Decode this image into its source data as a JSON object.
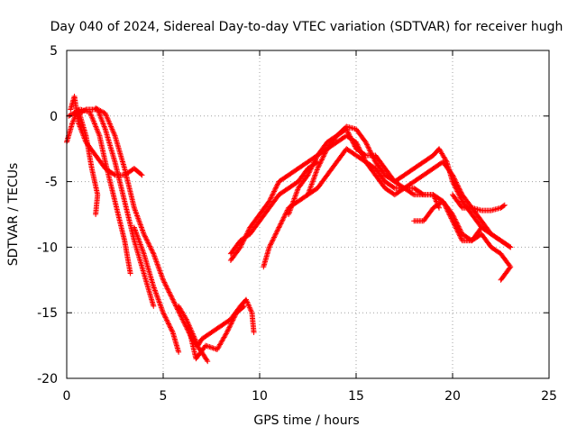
{
  "chart_data": {
    "type": "scatter",
    "title": "Day 040 of 2024, Sidereal Day-to-day VTEC variation (SDTVAR) for receiver hugh",
    "xlabel": "GPS time / hours",
    "ylabel": "SDTVAR / TECUs",
    "xlim": [
      0,
      25
    ],
    "ylim": [
      -20,
      5
    ],
    "xticks": [
      "0",
      "5",
      "10",
      "15",
      "20",
      "25"
    ],
    "yticks": [
      "5",
      "0",
      "-5",
      "-10",
      "-15",
      "-20"
    ],
    "grid": true,
    "marker": "+",
    "series_color": "#ff0000",
    "tracks": [
      {
        "name": "track-1",
        "points": [
          [
            0.0,
            -2.0
          ],
          [
            0.3,
            -0.5
          ],
          [
            0.6,
            0.5
          ],
          [
            1.0,
            -1.5
          ],
          [
            1.3,
            -4.0
          ],
          [
            1.6,
            -6.0
          ],
          [
            1.5,
            -7.5
          ]
        ]
      },
      {
        "name": "track-2",
        "points": [
          [
            0.2,
            0.5
          ],
          [
            0.4,
            1.5
          ],
          [
            0.6,
            -0.5
          ],
          [
            1.0,
            -2.0
          ],
          [
            1.5,
            -3.0
          ],
          [
            2.0,
            -4.0
          ],
          [
            2.5,
            -4.5
          ],
          [
            3.0,
            -4.5
          ],
          [
            3.5,
            -4.0
          ],
          [
            3.9,
            -4.5
          ]
        ]
      },
      {
        "name": "track-3",
        "points": [
          [
            0.1,
            0.0
          ],
          [
            0.7,
            0.5
          ],
          [
            1.2,
            0.3
          ],
          [
            1.7,
            -1.5
          ],
          [
            2.0,
            -3.5
          ],
          [
            2.5,
            -6.5
          ],
          [
            3.0,
            -9.5
          ],
          [
            3.3,
            -12.0
          ]
        ]
      },
      {
        "name": "track-4",
        "points": [
          [
            0.4,
            0.0
          ],
          [
            1.0,
            0.5
          ],
          [
            1.6,
            0.5
          ],
          [
            2.0,
            -1.0
          ],
          [
            2.5,
            -3.5
          ],
          [
            3.0,
            -6.5
          ],
          [
            3.5,
            -9.5
          ],
          [
            4.0,
            -12.0
          ],
          [
            4.5,
            -14.5
          ]
        ]
      },
      {
        "name": "track-5",
        "points": [
          [
            1.5,
            0.6
          ],
          [
            2.0,
            0.2
          ],
          [
            2.5,
            -1.5
          ],
          [
            3.0,
            -4.0
          ],
          [
            3.5,
            -7.0
          ],
          [
            4.0,
            -9.0
          ],
          [
            4.5,
            -10.5
          ],
          [
            5.0,
            -12.5
          ],
          [
            5.5,
            -14.0
          ],
          [
            6.0,
            -15.5
          ],
          [
            6.5,
            -17.0
          ],
          [
            7.0,
            -18.0
          ],
          [
            7.3,
            -18.7
          ]
        ]
      },
      {
        "name": "track-6",
        "points": [
          [
            3.5,
            -8.5
          ],
          [
            4.0,
            -10.5
          ],
          [
            4.5,
            -13.0
          ],
          [
            5.0,
            -15.0
          ],
          [
            5.5,
            -16.5
          ],
          [
            5.8,
            -18.0
          ]
        ]
      },
      {
        "name": "track-7",
        "points": [
          [
            5.8,
            -14.5
          ],
          [
            6.2,
            -15.5
          ],
          [
            6.5,
            -16.5
          ],
          [
            6.8,
            -17.5
          ],
          [
            7.0,
            -17.0
          ],
          [
            7.5,
            -16.5
          ],
          [
            8.0,
            -16.0
          ],
          [
            8.5,
            -15.5
          ],
          [
            9.0,
            -14.5
          ],
          [
            9.3,
            -14.0
          ],
          [
            9.6,
            -15.0
          ],
          [
            9.7,
            -16.5
          ]
        ]
      },
      {
        "name": "track-8",
        "points": [
          [
            6.3,
            -16.0
          ],
          [
            6.7,
            -18.5
          ],
          [
            7.2,
            -17.5
          ],
          [
            7.8,
            -17.8
          ],
          [
            8.3,
            -16.5
          ],
          [
            8.8,
            -15.0
          ],
          [
            9.2,
            -14.5
          ]
        ]
      },
      {
        "name": "track-9",
        "points": [
          [
            8.5,
            -10.5
          ],
          [
            9.0,
            -9.5
          ],
          [
            9.5,
            -9.0
          ],
          [
            10.0,
            -8.0
          ],
          [
            10.5,
            -7.0
          ],
          [
            11.0,
            -6.0
          ],
          [
            11.5,
            -5.5
          ],
          [
            12.0,
            -5.0
          ],
          [
            12.5,
            -4.0
          ],
          [
            13.0,
            -3.5
          ]
        ]
      },
      {
        "name": "track-10",
        "points": [
          [
            8.5,
            -11.0
          ],
          [
            9.0,
            -10.0
          ],
          [
            9.5,
            -8.5
          ],
          [
            10.0,
            -7.5
          ],
          [
            10.5,
            -6.5
          ],
          [
            11.0,
            -5.0
          ],
          [
            11.5,
            -4.5
          ],
          [
            12.0,
            -4.0
          ],
          [
            12.5,
            -3.5
          ],
          [
            13.0,
            -3.0
          ],
          [
            13.5,
            -2.5
          ],
          [
            14.0,
            -2.0
          ],
          [
            14.5,
            -1.5
          ],
          [
            15.0,
            -2.0
          ],
          [
            15.5,
            -3.5
          ],
          [
            16.0,
            -4.5
          ],
          [
            16.5,
            -5.5
          ],
          [
            17.0,
            -6.0
          ],
          [
            17.5,
            -5.5
          ],
          [
            18.0,
            -5.0
          ],
          [
            18.5,
            -4.5
          ],
          [
            19.0,
            -4.0
          ],
          [
            19.5,
            -3.5
          ],
          [
            20.0,
            -4.5
          ],
          [
            20.5,
            -6.0
          ],
          [
            21.0,
            -7.0
          ],
          [
            21.5,
            -8.0
          ],
          [
            22.0,
            -9.0
          ],
          [
            22.5,
            -9.5
          ],
          [
            23.0,
            -10.0
          ]
        ]
      },
      {
        "name": "track-11",
        "points": [
          [
            10.2,
            -11.5
          ],
          [
            10.5,
            -10.0
          ],
          [
            11.0,
            -8.5
          ],
          [
            11.5,
            -7.0
          ],
          [
            12.0,
            -6.5
          ],
          [
            12.5,
            -6.0
          ],
          [
            13.0,
            -5.5
          ],
          [
            13.5,
            -4.5
          ],
          [
            14.0,
            -3.5
          ],
          [
            14.5,
            -2.5
          ],
          [
            15.0,
            -3.0
          ],
          [
            15.5,
            -3.5
          ],
          [
            16.0,
            -4.0
          ],
          [
            16.5,
            -5.0
          ],
          [
            17.0,
            -5.5
          ],
          [
            17.5,
            -5.5
          ],
          [
            18.0,
            -5.5
          ],
          [
            18.5,
            -6.0
          ],
          [
            19.0,
            -6.0
          ],
          [
            19.5,
            -6.5
          ],
          [
            20.0,
            -8.0
          ],
          [
            20.5,
            -9.5
          ],
          [
            21.0,
            -9.5
          ],
          [
            21.5,
            -8.5
          ]
        ]
      },
      {
        "name": "track-12",
        "points": [
          [
            11.5,
            -7.5
          ],
          [
            12.0,
            -5.5
          ],
          [
            12.5,
            -4.5
          ],
          [
            13.0,
            -3.0
          ],
          [
            13.5,
            -2.0
          ],
          [
            14.0,
            -1.5
          ],
          [
            14.5,
            -0.8
          ],
          [
            15.0,
            -1.0
          ],
          [
            15.5,
            -2.0
          ],
          [
            16.0,
            -3.5
          ],
          [
            16.5,
            -4.5
          ],
          [
            17.0,
            -5.0
          ],
          [
            17.5,
            -4.5
          ],
          [
            18.0,
            -4.0
          ],
          [
            18.5,
            -3.5
          ],
          [
            19.0,
            -3.0
          ],
          [
            19.3,
            -2.5
          ],
          [
            19.7,
            -3.5
          ],
          [
            20.0,
            -5.0
          ],
          [
            20.5,
            -6.5
          ],
          [
            21.0,
            -7.5
          ],
          [
            21.5,
            -8.5
          ],
          [
            22.0,
            -9.0
          ],
          [
            22.5,
            -9.5
          ],
          [
            23.0,
            -10.0
          ]
        ]
      },
      {
        "name": "track-13",
        "points": [
          [
            12.5,
            -6.0
          ],
          [
            13.0,
            -4.0
          ],
          [
            13.5,
            -2.5
          ],
          [
            14.0,
            -1.5
          ],
          [
            14.5,
            -1.0
          ],
          [
            15.0,
            -2.5
          ],
          [
            15.5,
            -3.0
          ],
          [
            16.0,
            -3.0
          ],
          [
            16.5,
            -4.0
          ],
          [
            17.0,
            -5.0
          ],
          [
            17.5,
            -5.5
          ],
          [
            18.0,
            -6.0
          ],
          [
            18.5,
            -6.0
          ],
          [
            19.0,
            -6.0
          ],
          [
            19.3,
            -7.0
          ]
        ]
      },
      {
        "name": "track-14",
        "points": [
          [
            18.0,
            -8.0
          ],
          [
            18.5,
            -8.0
          ],
          [
            19.0,
            -7.0
          ],
          [
            19.5,
            -6.5
          ],
          [
            20.0,
            -7.5
          ],
          [
            20.5,
            -9.0
          ],
          [
            21.0,
            -9.5
          ],
          [
            21.5,
            -9.0
          ],
          [
            22.0,
            -10.0
          ],
          [
            22.5,
            -10.5
          ],
          [
            23.0,
            -11.5
          ],
          [
            22.5,
            -12.5
          ]
        ]
      },
      {
        "name": "track-15",
        "points": [
          [
            20.0,
            -6.0
          ],
          [
            20.5,
            -7.0
          ],
          [
            21.0,
            -7.0
          ],
          [
            21.5,
            -7.2
          ],
          [
            22.0,
            -7.2
          ],
          [
            22.5,
            -7.0
          ],
          [
            22.7,
            -6.8
          ]
        ]
      }
    ]
  }
}
